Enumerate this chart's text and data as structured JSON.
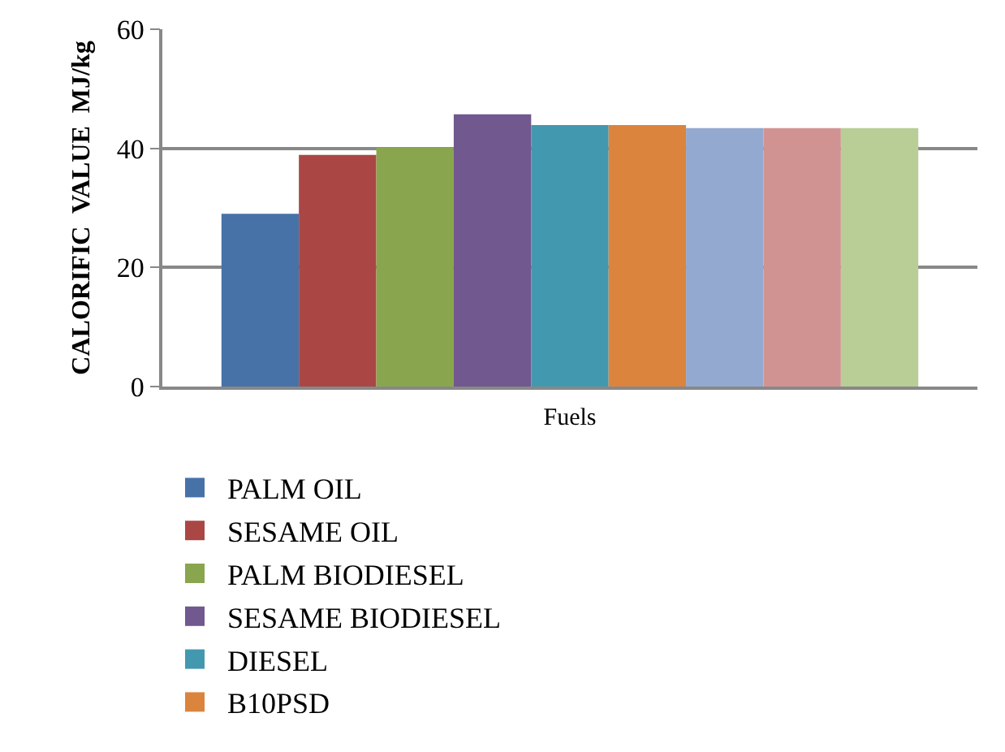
{
  "chart_data": {
    "type": "bar",
    "xlabel": "Fuels",
    "ylabel": "CALORIFIC  VALUE  MJ/kg",
    "categories": [
      null
    ],
    "series": [
      {
        "name": "PALM OIL",
        "color": "#4672a8",
        "values": [
          29.0
        ]
      },
      {
        "name": "SESAME OIL",
        "color": "#aa4744",
        "values": [
          38.9
        ]
      },
      {
        "name": "PALM BIODIESEL",
        "color": "#89a54e",
        "values": [
          40.2
        ]
      },
      {
        "name": "SESAME BIODIESEL",
        "color": "#71588f",
        "values": [
          45.7
        ]
      },
      {
        "name": "DIESEL",
        "color": "#4298af",
        "values": [
          43.9
        ]
      },
      {
        "name": "B10PSD",
        "color": "#db843d",
        "values": [
          43.9
        ]
      },
      {
        "color": "#93a9cf",
        "values": [
          43.4
        ]
      },
      {
        "color": "#d19392",
        "values": [
          43.4
        ]
      },
      {
        "color": "#b9cd96",
        "values": [
          43.4
        ]
      }
    ],
    "ylim": [
      0,
      60
    ],
    "yticks": [
      0,
      20,
      40,
      60
    ],
    "grid": "y",
    "legend": "bottom",
    "tick_labels": "y"
  }
}
